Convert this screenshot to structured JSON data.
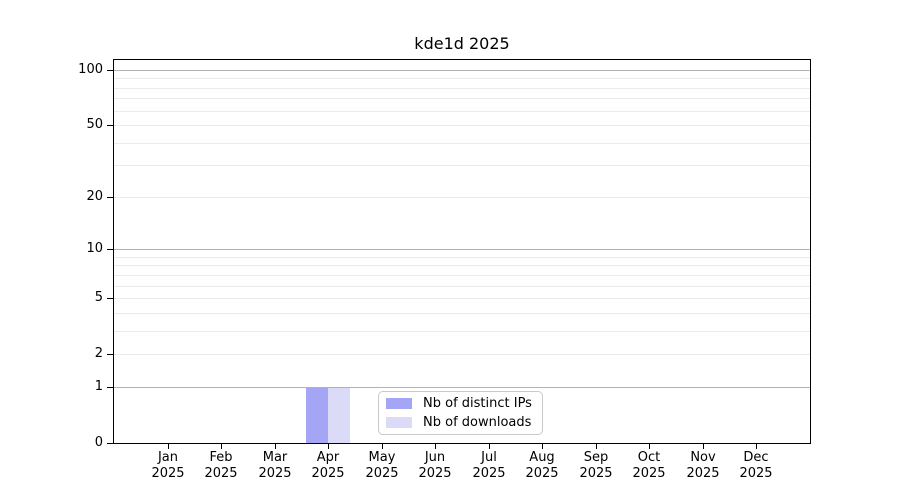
{
  "chart_data": {
    "type": "bar",
    "title": "kde1d 2025",
    "categories": [
      "Jan",
      "Feb",
      "Mar",
      "Apr",
      "May",
      "Jun",
      "Jul",
      "Aug",
      "Sep",
      "Oct",
      "Nov",
      "Dec"
    ],
    "category_year": "2025",
    "series": [
      {
        "name": "Nb of distinct IPs",
        "color": "#a5a5f5",
        "values": [
          0,
          0,
          0,
          1,
          0,
          0,
          0,
          0,
          0,
          0,
          0,
          0
        ]
      },
      {
        "name": "Nb of downloads",
        "color": "#dbdbf8",
        "values": [
          0,
          0,
          0,
          1,
          0,
          0,
          0,
          0,
          0,
          0,
          0,
          0
        ]
      }
    ],
    "xlabel": "",
    "ylabel": "",
    "y_axis": {
      "scale": "log1p",
      "tick_values": [
        0,
        1,
        2,
        5,
        10,
        20,
        50,
        100
      ],
      "major_grid_values": [
        1,
        10,
        100
      ],
      "minor_grid_values": [
        2,
        3,
        4,
        5,
        6,
        7,
        8,
        9,
        20,
        30,
        40,
        50,
        60,
        70,
        80,
        90
      ],
      "ylim": [
        0,
        113
      ]
    },
    "grid": "on",
    "legend_position": "bottom-center",
    "colors": {
      "major_grid": "#b3b3b3",
      "minor_grid": "#ebebeb",
      "spine": "#000000"
    }
  }
}
